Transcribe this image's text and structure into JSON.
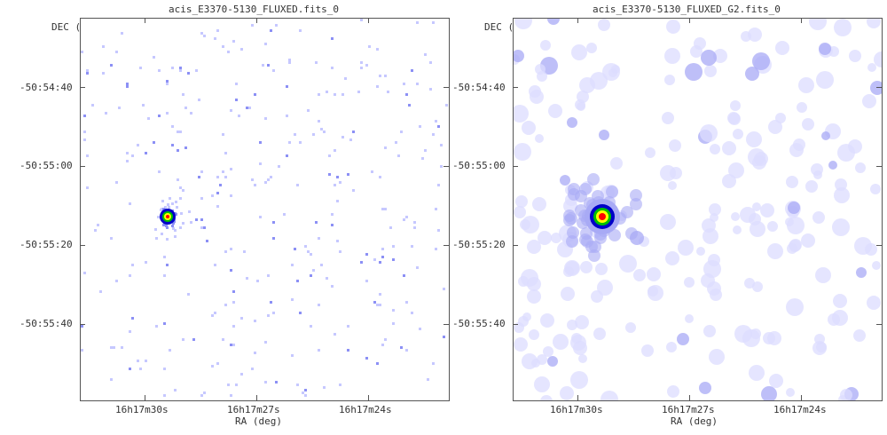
{
  "panels": [
    {
      "title": "acis_E3370-5130_FLUXED.fits_0",
      "dec_label": "DEC (deg)",
      "ra_label": "RA (deg)",
      "dec_ticks": [
        "-50:54:40",
        "-50:55:00",
        "-50:55:20",
        "-50:55:40"
      ],
      "ra_ticks": [
        "16h17m30s",
        "16h17m27s",
        "16h17m24s"
      ],
      "image_style": "binned sparse photon events, single bright source",
      "colormap": {
        "background": "#ffffff",
        "faint": "#c6c8ff",
        "mid": "#8c90f5",
        "hot": [
          "#0000c8",
          "#00c000",
          "#ffff00",
          "#ff0000"
        ]
      }
    },
    {
      "title": "acis_E3370-5130_FLUXED_G2.fits_0",
      "dec_label": "DEC (deg)",
      "ra_label": "RA (deg)",
      "dec_ticks": [
        "-50:54:40",
        "-50:55:00",
        "-50:55:20",
        "-50:55:40"
      ],
      "ra_ticks": [
        "16h17m30s",
        "16h17m27s",
        "16h17m24s"
      ],
      "image_style": "Gaussian-smoothed photon events, single bright source",
      "colormap": {
        "background": "#ffffff",
        "faint": "#dcdcff",
        "mid": "#a8aaf5",
        "hot": [
          "#0000c8",
          "#00c000",
          "#ffff00",
          "#ff0000"
        ]
      }
    }
  ]
}
